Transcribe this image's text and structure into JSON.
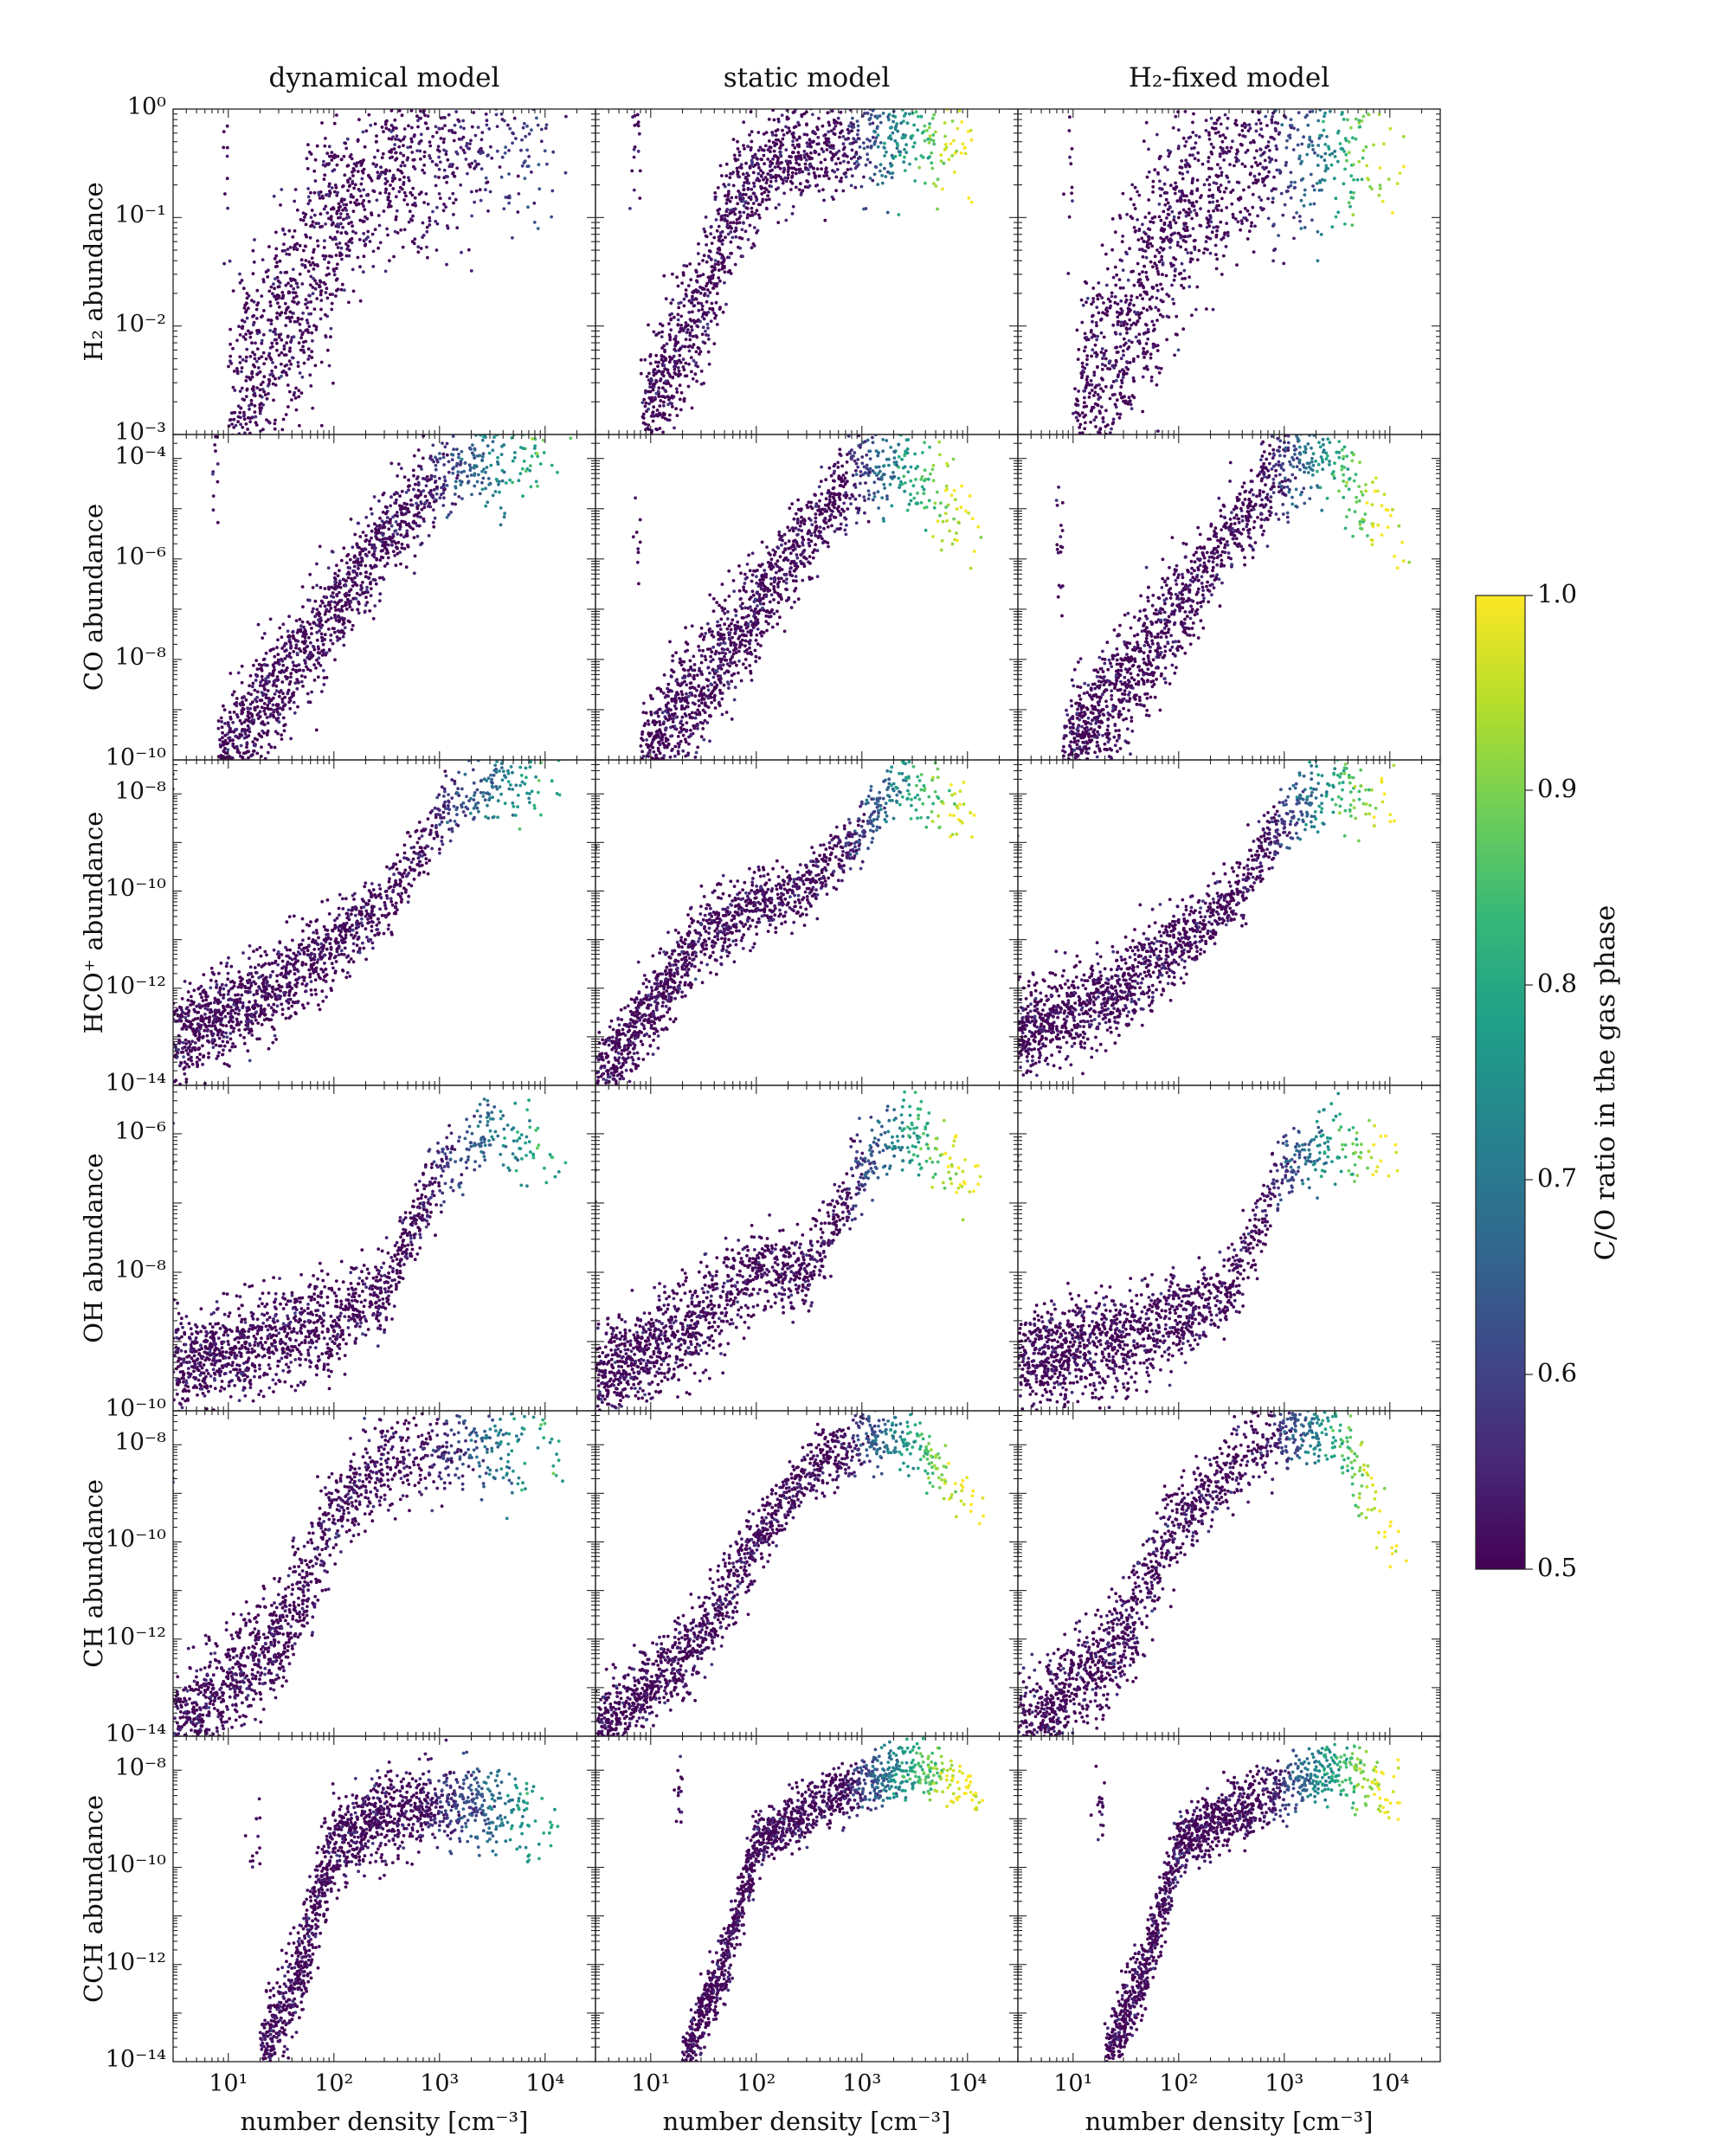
{
  "figure": {
    "columns": [
      "dynamical model",
      "static model",
      "H₂-fixed model"
    ],
    "xlabel": "number density [cm⁻³]",
    "colorbar": {
      "label": "C/O ratio in the gas phase",
      "range": [
        0.5,
        1.0
      ],
      "ticks": [
        "0.5",
        "0.6",
        "0.7",
        "0.8",
        "0.9",
        "1.0"
      ],
      "colors": [
        "#440154",
        "#482878",
        "#3e4989",
        "#31688e",
        "#26828e",
        "#1f9e89",
        "#35b779",
        "#6ece58",
        "#b5de2b",
        "#fde725"
      ]
    }
  },
  "chart_data": [
    {
      "type": "scatter",
      "row": 0,
      "title": "H2 abundance",
      "ylabel": "H₂ abundance",
      "xscale": "log",
      "yscale": "log",
      "xlim": [
        3,
        30000
      ],
      "ylim": [
        0.001,
        1
      ],
      "xticks": [
        "10¹",
        "10²",
        "10³",
        "10⁴"
      ],
      "yticks": [
        {
          "v": 1,
          "t": "10⁰"
        },
        {
          "v": 0.1,
          "t": "10⁻¹"
        },
        {
          "v": 0.01,
          "t": "10⁻²"
        },
        {
          "v": 0.001,
          "t": "10⁻³"
        }
      ],
      "series": [
        {
          "model": "dynamical",
          "envelope": [
            [
              10,
              0.0012
            ],
            [
              30,
              0.008
            ],
            [
              100,
              0.09
            ],
            [
              300,
              0.3
            ],
            [
              1000,
              0.45
            ],
            [
              3000,
              0.5
            ],
            [
              15000,
              0.5
            ]
          ],
          "spread": 1.2,
          "trend_co": 0.6
        },
        {
          "model": "static",
          "envelope": [
            [
              8,
              0.0012
            ],
            [
              30,
              0.015
            ],
            [
              60,
              0.12
            ],
            [
              150,
              0.35
            ],
            [
              500,
              0.48
            ],
            [
              1500,
              0.5
            ],
            [
              15000,
              0.5
            ]
          ],
          "spread": 0.7,
          "trend_co": 1.0
        },
        {
          "model": "H2-fixed",
          "envelope": [
            [
              10,
              0.0012
            ],
            [
              30,
              0.008
            ],
            [
              100,
              0.09
            ],
            [
              300,
              0.3
            ],
            [
              1000,
              0.45
            ],
            [
              3000,
              0.5
            ],
            [
              15000,
              0.5
            ]
          ],
          "spread": 1.2,
          "trend_co": 0.95
        }
      ]
    },
    {
      "type": "scatter",
      "row": 1,
      "title": "CO abundance",
      "ylabel": "CO abundance",
      "xscale": "log",
      "yscale": "log",
      "xlim": [
        3,
        30000
      ],
      "ylim": [
        1e-10,
        0.0003
      ],
      "xticks": [
        "10¹",
        "10²",
        "10³",
        "10⁴"
      ],
      "yticks": [
        {
          "v": 0.0001,
          "t": "10⁻⁴"
        },
        {
          "v": 1e-06,
          "t": "10⁻⁶"
        },
        {
          "v": 1e-08,
          "t": "10⁻⁸"
        },
        {
          "v": 1e-10,
          "t": "10⁻¹⁰"
        }
      ],
      "series": [
        {
          "model": "dynamical",
          "envelope": [
            [
              8,
              1e-10
            ],
            [
              30,
              3e-09
            ],
            [
              100,
              1e-07
            ],
            [
              300,
              3e-06
            ],
            [
              1000,
              4e-05
            ],
            [
              3000,
              0.0001
            ],
            [
              15000,
              8e-05
            ]
          ],
          "spread": 1.3,
          "trend_co": 0.85
        },
        {
          "model": "static",
          "envelope": [
            [
              8,
              1e-10
            ],
            [
              30,
              3e-09
            ],
            [
              100,
              1e-07
            ],
            [
              300,
              3e-06
            ],
            [
              1000,
              6e-05
            ],
            [
              2500,
              0.0001
            ],
            [
              15000,
              2e-06
            ]
          ],
          "spread": 1.3,
          "trend_co": 1.0
        },
        {
          "model": "H2-fixed",
          "envelope": [
            [
              8,
              1e-10
            ],
            [
              30,
              3e-09
            ],
            [
              100,
              1e-07
            ],
            [
              300,
              3e-06
            ],
            [
              1000,
              6e-05
            ],
            [
              2500,
              0.0001
            ],
            [
              15000,
              2e-06
            ]
          ],
          "spread": 1.3,
          "trend_co": 1.0
        }
      ]
    },
    {
      "type": "scatter",
      "row": 2,
      "title": "HCO+ abundance",
      "ylabel": "HCO⁺ abundance",
      "xscale": "log",
      "yscale": "log",
      "xlim": [
        3,
        30000
      ],
      "ylim": [
        1e-14,
        5e-08
      ],
      "xticks": [
        "10¹",
        "10²",
        "10³",
        "10⁴"
      ],
      "yticks": [
        {
          "v": 1e-08,
          "t": "10⁻⁸"
        },
        {
          "v": 1e-10,
          "t": "10⁻¹⁰"
        },
        {
          "v": 1e-12,
          "t": "10⁻¹²"
        },
        {
          "v": 1e-14,
          "t": "10⁻¹⁴"
        }
      ],
      "series": [
        {
          "model": "dynamical",
          "envelope": [
            [
              3,
              1e-13
            ],
            [
              30,
              1e-12
            ],
            [
              100,
              8e-12
            ],
            [
              300,
              5e-11
            ],
            [
              1000,
              3e-09
            ],
            [
              3000,
              1.5e-08
            ],
            [
              15000,
              2e-08
            ]
          ],
          "spread": 1.0,
          "trend_co": 0.8
        },
        {
          "model": "static",
          "envelope": [
            [
              3,
              1e-14
            ],
            [
              30,
              1e-11
            ],
            [
              100,
              5e-11
            ],
            [
              300,
              1e-10
            ],
            [
              1000,
              2e-09
            ],
            [
              2500,
              2e-08
            ],
            [
              15000,
              2e-09
            ]
          ],
          "spread": 0.9,
          "trend_co": 1.0
        },
        {
          "model": "H2-fixed",
          "envelope": [
            [
              3,
              1e-13
            ],
            [
              30,
              1e-12
            ],
            [
              100,
              8e-12
            ],
            [
              300,
              5e-11
            ],
            [
              1000,
              3e-09
            ],
            [
              3000,
              1.5e-08
            ],
            [
              15000,
              4e-09
            ]
          ],
          "spread": 1.0,
          "trend_co": 1.0
        }
      ]
    },
    {
      "type": "scatter",
      "row": 3,
      "title": "OH abundance",
      "ylabel": "OH abundance",
      "xscale": "log",
      "yscale": "log",
      "xlim": [
        3,
        30000
      ],
      "ylim": [
        1e-10,
        5e-06
      ],
      "xticks": [
        "10¹",
        "10²",
        "10³",
        "10⁴"
      ],
      "yticks": [
        {
          "v": 1e-06,
          "t": "10⁻⁶"
        },
        {
          "v": 1e-08,
          "t": "10⁻⁸"
        },
        {
          "v": 1e-10,
          "t": "10⁻¹⁰"
        }
      ],
      "series": [
        {
          "model": "dynamical",
          "envelope": [
            [
              3,
              5e-10
            ],
            [
              30,
              1e-09
            ],
            [
              100,
              2e-09
            ],
            [
              300,
              5e-09
            ],
            [
              1000,
              3e-07
            ],
            [
              3000,
              1e-06
            ],
            [
              15000,
              4e-07
            ]
          ],
          "spread": 0.8,
          "trend_co": 0.8
        },
        {
          "model": "static",
          "envelope": [
            [
              3,
              2.5e-10
            ],
            [
              30,
              2e-09
            ],
            [
              100,
              1e-08
            ],
            [
              300,
              1e-08
            ],
            [
              1000,
              3e-07
            ],
            [
              2500,
              1.5e-06
            ],
            [
              15000,
              1.5e-07
            ]
          ],
          "spread": 0.8,
          "trend_co": 1.0
        },
        {
          "model": "H2-fixed",
          "envelope": [
            [
              3,
              5e-10
            ],
            [
              30,
              1e-09
            ],
            [
              100,
              2e-09
            ],
            [
              300,
              5e-09
            ],
            [
              1000,
              3e-07
            ],
            [
              3000,
              1e-06
            ],
            [
              15000,
              2e-07
            ]
          ],
          "spread": 0.8,
          "trend_co": 1.0
        }
      ]
    },
    {
      "type": "scatter",
      "row": 4,
      "title": "CH abundance",
      "ylabel": "CH abundance",
      "xscale": "log",
      "yscale": "log",
      "xlim": [
        3,
        30000
      ],
      "ylim": [
        1e-14,
        5e-08
      ],
      "xticks": [
        "10¹",
        "10²",
        "10³",
        "10⁴"
      ],
      "yticks": [
        {
          "v": 1e-08,
          "t": "10⁻⁸"
        },
        {
          "v": 1e-10,
          "t": "10⁻¹⁰"
        },
        {
          "v": 1e-12,
          "t": "10⁻¹²"
        },
        {
          "v": 1e-14,
          "t": "10⁻¹⁴"
        }
      ],
      "series": [
        {
          "model": "dynamical",
          "envelope": [
            [
              3,
              1e-14
            ],
            [
              30,
              1e-12
            ],
            [
              100,
              3e-10
            ],
            [
              300,
              5e-09
            ],
            [
              1000,
              1e-08
            ],
            [
              3000,
              8e-09
            ],
            [
              15000,
              5e-09
            ]
          ],
          "spread": 1.3,
          "trend_co": 0.8
        },
        {
          "model": "static",
          "envelope": [
            [
              3,
              1e-14
            ],
            [
              30,
              1e-12
            ],
            [
              100,
              1e-10
            ],
            [
              300,
              3e-09
            ],
            [
              1000,
              1.2e-08
            ],
            [
              3000,
              1.2e-08
            ],
            [
              15000,
              3e-10
            ]
          ],
          "spread": 0.9,
          "trend_co": 1.0
        },
        {
          "model": "H2-fixed",
          "envelope": [
            [
              3,
              1e-14
            ],
            [
              30,
              1e-12
            ],
            [
              100,
              3e-10
            ],
            [
              300,
              3e-09
            ],
            [
              1000,
              2e-08
            ],
            [
              3000,
              2e-08
            ],
            [
              15000,
              4e-11
            ]
          ],
          "spread": 1.2,
          "trend_co": 1.0
        }
      ]
    },
    {
      "type": "scatter",
      "row": 5,
      "title": "CCH abundance",
      "ylabel": "CCH abundance",
      "xscale": "log",
      "yscale": "log",
      "xlim": [
        3,
        30000
      ],
      "ylim": [
        1e-14,
        5e-08
      ],
      "xticks": [
        "10¹",
        "10²",
        "10³",
        "10⁴"
      ],
      "yticks": [
        {
          "v": 1e-08,
          "t": "10⁻⁸"
        },
        {
          "v": 1e-10,
          "t": "10⁻¹⁰"
        },
        {
          "v": 1e-12,
          "t": "10⁻¹²"
        },
        {
          "v": 1e-14,
          "t": "10⁻¹⁴"
        }
      ],
      "series": [
        {
          "model": "dynamical",
          "envelope": [
            [
              20,
              1e-14
            ],
            [
              50,
              1e-12
            ],
            [
              100,
              3e-10
            ],
            [
              300,
              1e-09
            ],
            [
              1000,
              2e-09
            ],
            [
              3000,
              2e-09
            ],
            [
              15000,
              5e-10
            ]
          ],
          "spread": 1.2,
          "trend_co": 0.8
        },
        {
          "model": "static",
          "envelope": [
            [
              20,
              1e-14
            ],
            [
              50,
              1e-12
            ],
            [
              100,
              3e-10
            ],
            [
              300,
              1.5e-09
            ],
            [
              1000,
              5e-09
            ],
            [
              3000,
              1.2e-08
            ],
            [
              15000,
              3e-09
            ]
          ],
          "spread": 0.8,
          "trend_co": 1.0
        },
        {
          "model": "H2-fixed",
          "envelope": [
            [
              20,
              1e-14
            ],
            [
              50,
              1e-12
            ],
            [
              100,
              3e-10
            ],
            [
              300,
              1.2e-09
            ],
            [
              1000,
              4e-09
            ],
            [
              3000,
              1.2e-08
            ],
            [
              15000,
              3e-09
            ]
          ],
          "spread": 0.9,
          "trend_co": 1.0
        }
      ]
    }
  ]
}
